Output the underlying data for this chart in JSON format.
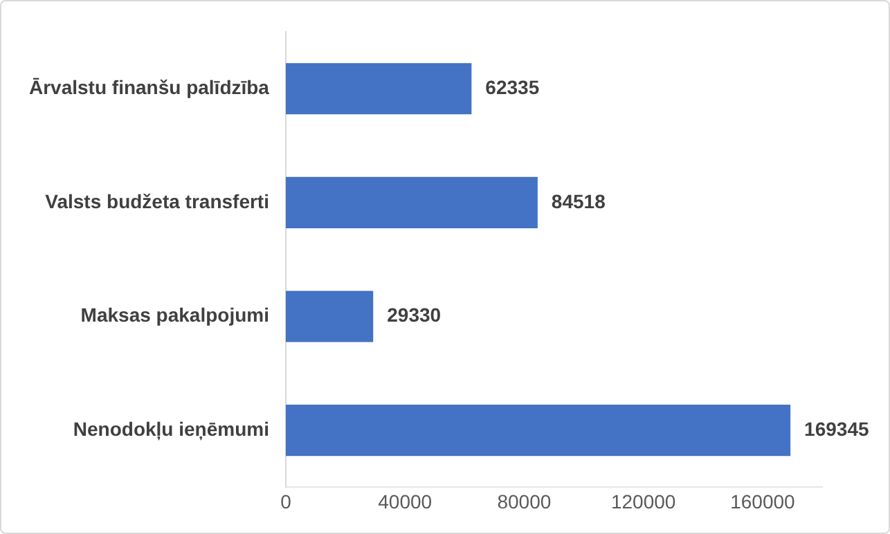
{
  "chart_data": {
    "type": "bar",
    "orientation": "horizontal",
    "categories": [
      "Ārvalstu finanšu palīdzība",
      "Valsts budžeta transferti",
      "Maksas pakalpojumi",
      "Nenodokļu ieņēmumi"
    ],
    "values": [
      62335,
      84518,
      29330,
      169345
    ],
    "color": "#4472c4",
    "xlim": [
      0,
      180000
    ],
    "xticks": [
      0,
      40000,
      80000,
      120000,
      160000
    ],
    "grid": false,
    "legend": false,
    "data_labels": true
  }
}
